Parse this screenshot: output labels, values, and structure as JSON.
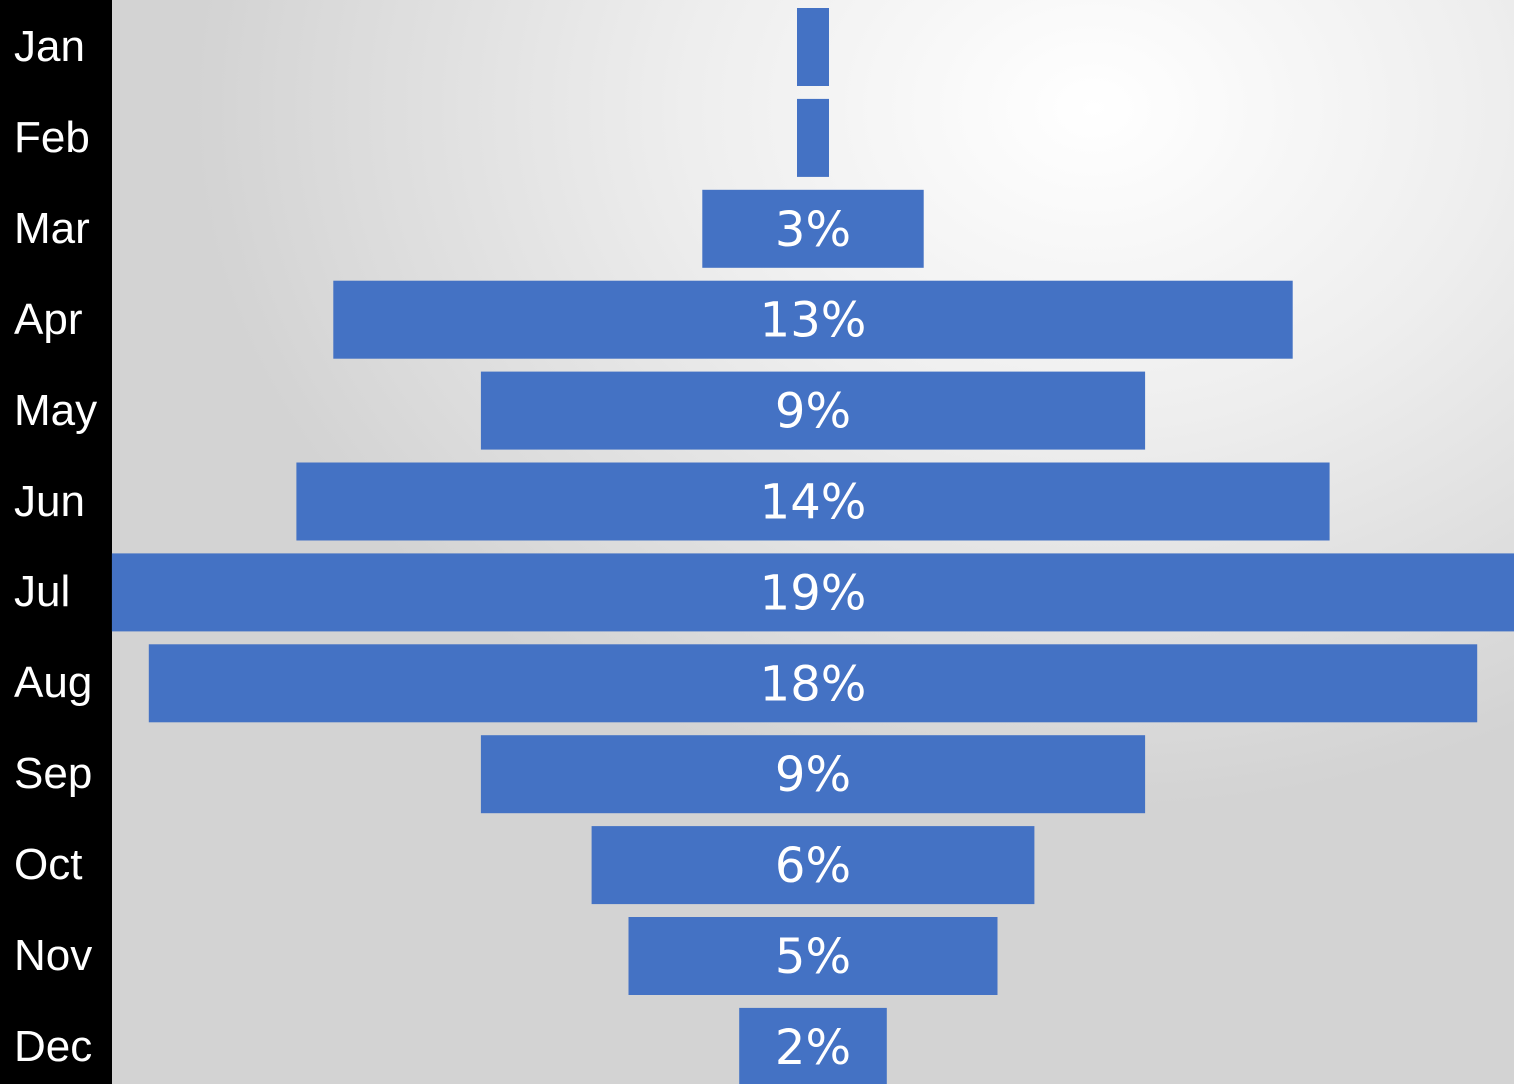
{
  "chart_data": {
    "type": "bar",
    "orientation": "horizontal-funnel",
    "categories": [
      "Jan",
      "Feb",
      "Mar",
      "Apr",
      "May",
      "Jun",
      "Jul",
      "Aug",
      "Sep",
      "Oct",
      "Nov",
      "Dec"
    ],
    "values": [
      0,
      0,
      3,
      13,
      9,
      14,
      19,
      18,
      9,
      6,
      5,
      2
    ],
    "value_labels": [
      "",
      "",
      "3%",
      "13%",
      "9%",
      "14%",
      "19%",
      "18%",
      "9%",
      "6%",
      "5%",
      "2%"
    ],
    "unit": "%",
    "title": "",
    "xlabel": "",
    "ylabel": "",
    "grid": false,
    "legend": "none"
  },
  "colors": {
    "bar": "#4472C4",
    "label_column_background": "#000000",
    "label_text": "#FFFFFF",
    "bar_label_text": "#FFFFFF"
  }
}
